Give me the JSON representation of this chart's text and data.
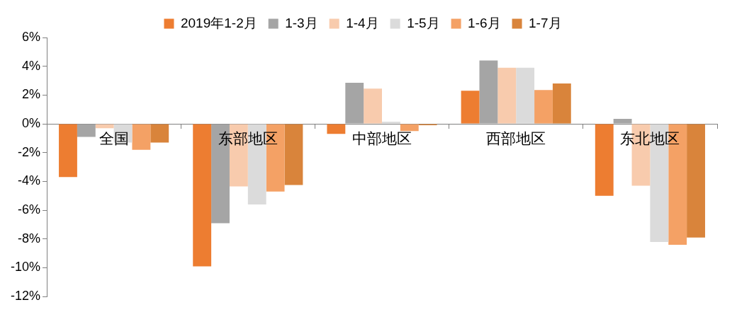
{
  "chart_data": {
    "type": "bar",
    "categories": [
      "全国",
      "东部地区",
      "中部地区",
      "西部地区",
      "东北地区"
    ],
    "series": [
      {
        "name": "2019年1-2月",
        "color": "#ed7d31",
        "values": [
          -3.7,
          -9.9,
          -0.7,
          2.3,
          -5.0
        ]
      },
      {
        "name": "1-3月",
        "color": "#a5a5a5",
        "values": [
          -0.9,
          -6.9,
          2.85,
          4.4,
          0.35
        ]
      },
      {
        "name": "1-4月",
        "color": "#f8cbad",
        "values": [
          -0.3,
          -4.35,
          2.45,
          3.9,
          -4.3
        ]
      },
      {
        "name": "1-5月",
        "color": "#dbdbdb",
        "values": [
          -1.3,
          -5.6,
          0.15,
          3.9,
          -8.2
        ]
      },
      {
        "name": "1-6月",
        "color": "#f4a165",
        "values": [
          -1.8,
          -4.7,
          -0.5,
          2.35,
          -8.4
        ]
      },
      {
        "name": "1-7月",
        "color": "#d9843b",
        "values": [
          -1.3,
          -4.25,
          -0.1,
          2.8,
          -7.9
        ]
      }
    ],
    "ylim": [
      -12,
      6
    ],
    "yticks": [
      {
        "value": -12,
        "label": "-12%"
      },
      {
        "value": -10,
        "label": "-10%"
      },
      {
        "value": -8,
        "label": "-8%"
      },
      {
        "value": -6,
        "label": "-6%"
      },
      {
        "value": -4,
        "label": "-4%"
      },
      {
        "value": -2,
        "label": "-2%"
      },
      {
        "value": 0,
        "label": "0%"
      },
      {
        "value": 2,
        "label": "2%"
      },
      {
        "value": 4,
        "label": "4%"
      },
      {
        "value": 6,
        "label": "6%"
      }
    ],
    "grid": false,
    "legend": "top"
  }
}
